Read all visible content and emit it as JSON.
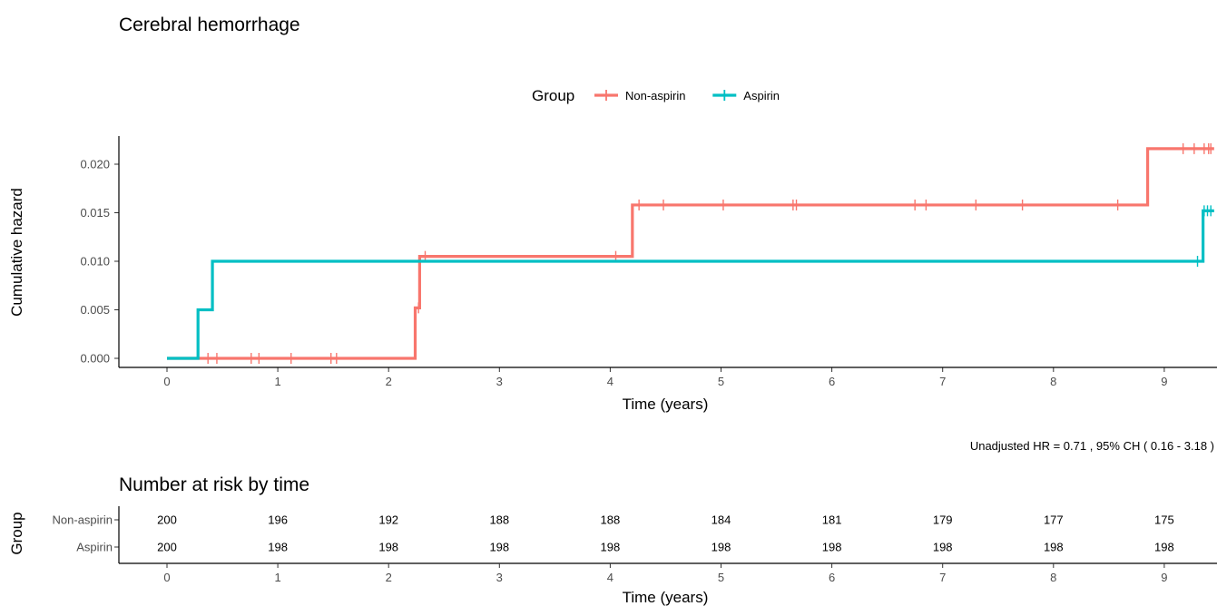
{
  "colors": {
    "non_aspirin": "#f8766d",
    "aspirin": "#00bfc4"
  },
  "chart_data": [
    {
      "type": "line",
      "subtype": "step",
      "title": "Cerebral hemorrhage",
      "xlabel": "Time (years)",
      "ylabel": "Cumulative hazard",
      "xlim": [
        -0.3,
        9.45
      ],
      "ylim": [
        -0.0005,
        0.0225
      ],
      "xticks": [
        0,
        1,
        2,
        3,
        4,
        5,
        6,
        7,
        8,
        9
      ],
      "yticks": [
        "0.000",
        "0.005",
        "0.010",
        "0.015",
        "0.020"
      ],
      "ytick_values": [
        0,
        0.005,
        0.01,
        0.015,
        0.02
      ],
      "legend": {
        "title": "Group",
        "position": "top"
      },
      "grid": false,
      "series": [
        {
          "name": "Non-aspirin",
          "color": "#f8766d",
          "steps": [
            [
              0.27,
              0
            ],
            [
              2.24,
              0.0052
            ],
            [
              2.28,
              0.0105
            ],
            [
              4.2,
              0.0158
            ],
            [
              8.85,
              0.0216
            ],
            [
              9.45,
              0.0216
            ]
          ],
          "censor_x": [
            0.37,
            0.45,
            0.76,
            0.83,
            1.12,
            1.48,
            1.53,
            2.27,
            2.33,
            4.05,
            4.26,
            4.48,
            5.02,
            5.65,
            5.68,
            6.75,
            6.85,
            7.3,
            7.72,
            8.58,
            9.17,
            9.27,
            9.36,
            9.4,
            9.42
          ]
        },
        {
          "name": "Aspirin",
          "color": "#00bfc4",
          "steps": [
            [
              0,
              0
            ],
            [
              0.28,
              0.005
            ],
            [
              0.41,
              0.01
            ],
            [
              9.35,
              0.0152
            ],
            [
              9.45,
              0.0152
            ]
          ],
          "censor_x": [
            9.3,
            9.36,
            9.39,
            9.42
          ]
        }
      ],
      "annotation": "Unadjusted HR = 0.71 , 95% CH ( 0.16 - 3.18 )"
    },
    {
      "type": "table",
      "title": "Number at risk by time",
      "xlabel": "Time (years)",
      "ylabel": "Group",
      "x": [
        0,
        1,
        2,
        3,
        4,
        5,
        6,
        7,
        8,
        9
      ],
      "rows": [
        {
          "name": "Non-aspirin",
          "values": [
            "200",
            "196",
            "192",
            "188",
            "188",
            "184",
            "181",
            "179",
            "177",
            "175"
          ]
        },
        {
          "name": "Aspirin",
          "values": [
            "200",
            "198",
            "198",
            "198",
            "198",
            "198",
            "198",
            "198",
            "198",
            "198"
          ]
        }
      ]
    }
  ]
}
